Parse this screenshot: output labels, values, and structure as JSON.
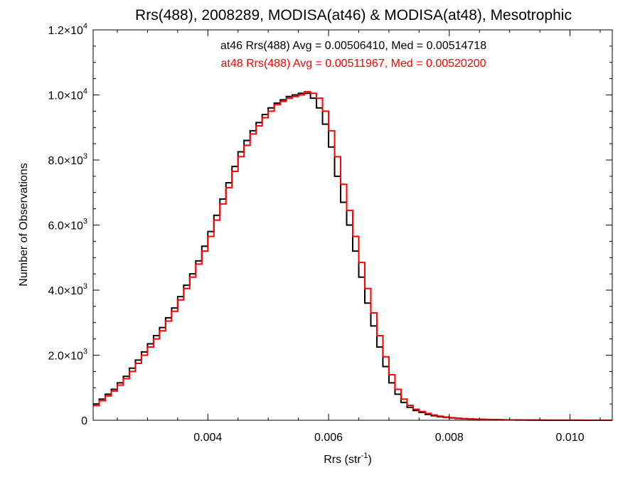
{
  "chart_data": {
    "type": "line",
    "title": "Rrs(488), 2008289, MODISA(at46) & MODISA(at48), Mesotrophic",
    "xlabel": "Rrs (str",
    "xlabel_sup": "-1",
    "xlabel_close": ")",
    "ylabel": "Number of Observations",
    "xlim": [
      0.0021,
      0.0107
    ],
    "ylim": [
      0,
      12000
    ],
    "x_ticks": [
      {
        "value": 0.004,
        "label": "0.004"
      },
      {
        "value": 0.006,
        "label": "0.006"
      },
      {
        "value": 0.008,
        "label": "0.008"
      },
      {
        "value": 0.01,
        "label": "0.010"
      }
    ],
    "y_ticks": [
      {
        "value": 0,
        "mant": "0",
        "exp": ""
      },
      {
        "value": 2000,
        "mant": "2.0×10",
        "exp": "3"
      },
      {
        "value": 4000,
        "mant": "4.0×10",
        "exp": "3"
      },
      {
        "value": 6000,
        "mant": "6.0×10",
        "exp": "3"
      },
      {
        "value": 8000,
        "mant": "8.0×10",
        "exp": "3"
      },
      {
        "value": 10000,
        "mant": "1.0×10",
        "exp": "4"
      },
      {
        "value": 12000,
        "mant": "1.2×10",
        "exp": "4"
      }
    ],
    "annotations": [
      {
        "text": "at46 Rrs(488) Avg = 0.00506410, Med = 0.00514718",
        "color": "#000000"
      },
      {
        "text": "at48 Rrs(488) Avg = 0.00511967, Med = 0.00520200",
        "color": "#ff0000"
      }
    ],
    "series": [
      {
        "color": "#000000",
        "x": [
          0.0021,
          0.0022,
          0.0023,
          0.0024,
          0.0025,
          0.0026,
          0.0027,
          0.0028,
          0.0029,
          0.003,
          0.0031,
          0.0032,
          0.0033,
          0.0034,
          0.0035,
          0.0036,
          0.0037,
          0.0038,
          0.0039,
          0.004,
          0.0041,
          0.0042,
          0.0043,
          0.0044,
          0.0045,
          0.0046,
          0.0047,
          0.0048,
          0.0049,
          0.005,
          0.0051,
          0.0052,
          0.0053,
          0.0054,
          0.0055,
          0.0056,
          0.0057,
          0.0058,
          0.0059,
          0.006,
          0.0061,
          0.0062,
          0.0063,
          0.0064,
          0.0065,
          0.0066,
          0.0067,
          0.0068,
          0.0069,
          0.007,
          0.0071,
          0.0072,
          0.0073,
          0.0074,
          0.0075,
          0.0076,
          0.0077,
          0.0078,
          0.0079,
          0.008,
          0.0081,
          0.0082,
          0.0083,
          0.0084,
          0.0085,
          0.0086,
          0.0087,
          0.0088,
          0.0089,
          0.009,
          0.0091,
          0.0092,
          0.0093,
          0.0094,
          0.0095,
          0.0096,
          0.0097,
          0.0098,
          0.0099,
          0.01,
          0.0101,
          0.0102,
          0.0103,
          0.0104,
          0.0105,
          0.0106,
          0.0107
        ],
        "y": [
          500,
          650,
          800,
          950,
          1150,
          1350,
          1600,
          1850,
          2100,
          2350,
          2600,
          2850,
          3150,
          3450,
          3800,
          4150,
          4500,
          4900,
          5350,
          5800,
          6300,
          6800,
          7300,
          7800,
          8250,
          8600,
          8900,
          9150,
          9400,
          9600,
          9750,
          9850,
          9950,
          10000,
          10050,
          10050,
          9900,
          9600,
          9100,
          8400,
          7500,
          6700,
          6000,
          5200,
          4400,
          3600,
          2900,
          2250,
          1650,
          1150,
          800,
          550,
          400,
          300,
          240,
          180,
          140,
          110,
          90,
          70,
          55,
          45,
          38,
          32,
          26,
          22,
          18,
          15,
          12,
          10,
          8,
          7,
          6,
          5,
          4,
          4,
          3,
          3,
          2,
          2,
          2,
          1,
          1,
          1,
          1,
          1,
          1
        ]
      },
      {
        "color": "#ff0000",
        "x": [
          0.0021,
          0.0022,
          0.0023,
          0.0024,
          0.0025,
          0.0026,
          0.0027,
          0.0028,
          0.0029,
          0.003,
          0.0031,
          0.0032,
          0.0033,
          0.0034,
          0.0035,
          0.0036,
          0.0037,
          0.0038,
          0.0039,
          0.004,
          0.0041,
          0.0042,
          0.0043,
          0.0044,
          0.0045,
          0.0046,
          0.0047,
          0.0048,
          0.0049,
          0.005,
          0.0051,
          0.0052,
          0.0053,
          0.0054,
          0.0055,
          0.0056,
          0.0057,
          0.0058,
          0.0059,
          0.006,
          0.0061,
          0.0062,
          0.0063,
          0.0064,
          0.0065,
          0.0066,
          0.0067,
          0.0068,
          0.0069,
          0.007,
          0.0071,
          0.0072,
          0.0073,
          0.0074,
          0.0075,
          0.0076,
          0.0077,
          0.0078,
          0.0079,
          0.008,
          0.0081,
          0.0082,
          0.0083,
          0.0084,
          0.0085,
          0.0086,
          0.0087,
          0.0088,
          0.0089,
          0.009,
          0.0091,
          0.0092,
          0.0093,
          0.0094,
          0.0095,
          0.0096,
          0.0097,
          0.0098,
          0.0099,
          0.01,
          0.0101,
          0.0102,
          0.0103,
          0.0104,
          0.0105,
          0.0106,
          0.0107
        ],
        "y": [
          450,
          600,
          750,
          900,
          1080,
          1280,
          1500,
          1750,
          2000,
          2250,
          2500,
          2750,
          3050,
          3350,
          3700,
          4050,
          4400,
          4800,
          5200,
          5650,
          6150,
          6650,
          7150,
          7650,
          8100,
          8450,
          8800,
          9050,
          9300,
          9500,
          9700,
          9800,
          9900,
          9950,
          10000,
          10100,
          10050,
          9900,
          9500,
          8900,
          8100,
          7250,
          6450,
          5650,
          4850,
          4050,
          3300,
          2600,
          1950,
          1400,
          950,
          650,
          460,
          340,
          270,
          210,
          160,
          125,
          100,
          80,
          65,
          52,
          43,
          36,
          30,
          25,
          20,
          17,
          14,
          11,
          9,
          8,
          7,
          6,
          5,
          4,
          4,
          3,
          3,
          2,
          2,
          2,
          1,
          1,
          1,
          1,
          1
        ]
      }
    ]
  }
}
